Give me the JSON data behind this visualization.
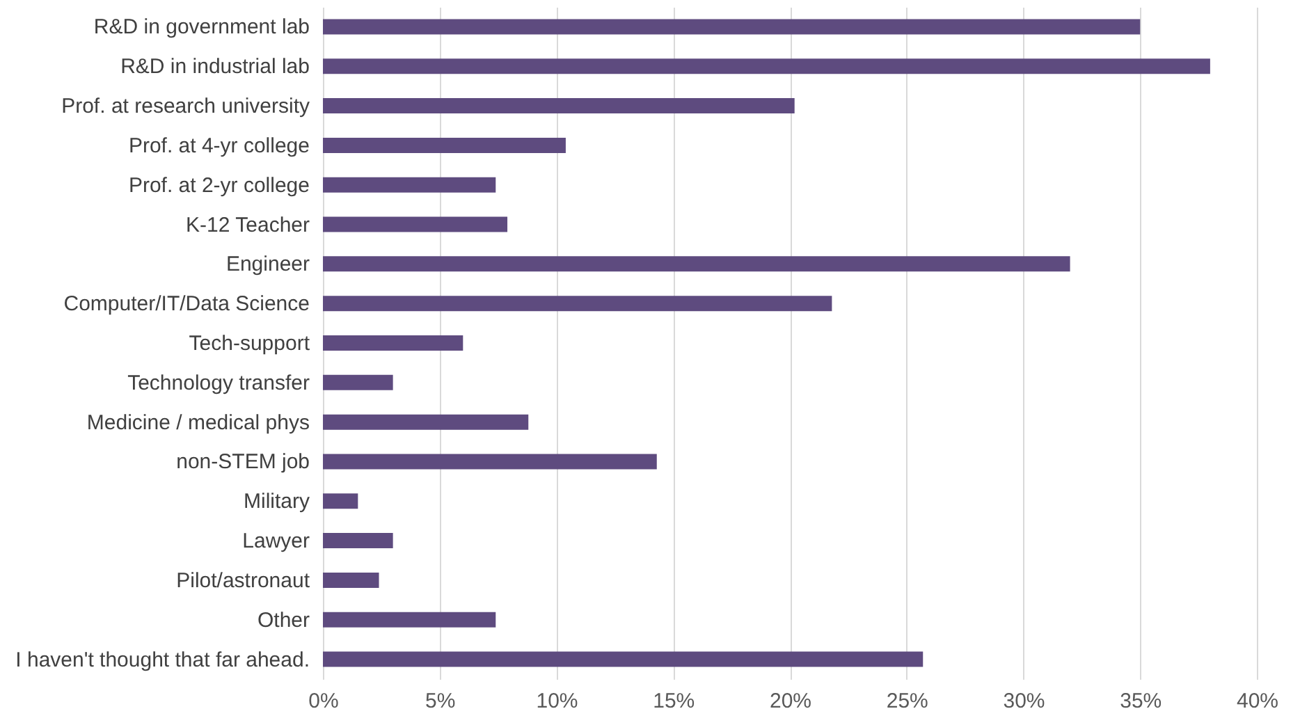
{
  "chart_data": {
    "type": "bar",
    "orientation": "horizontal",
    "categories": [
      "R&D in government lab",
      "R&D in industrial lab",
      "Prof. at research university",
      "Prof. at 4-yr college",
      "Prof. at 2-yr college",
      "K-12 Teacher",
      "Engineer",
      "Computer/IT/Data Science",
      "Tech-support",
      "Technology transfer",
      "Medicine / medical phys",
      "non-STEM job",
      "Military",
      "Lawyer",
      "Pilot/astronaut",
      "Other",
      "I haven't thought that far ahead."
    ],
    "values": [
      35,
      38,
      20.2,
      10.4,
      7.4,
      7.9,
      32,
      21.8,
      6,
      3,
      8.8,
      14.3,
      1.5,
      3,
      2.4,
      7.4,
      25.7
    ],
    "color": "#5e4b7f",
    "xlim": [
      0,
      40
    ],
    "xticks": [
      {
        "value": 0,
        "label": "0%"
      },
      {
        "value": 5,
        "label": "5%"
      },
      {
        "value": 10,
        "label": "10%"
      },
      {
        "value": 15,
        "label": "15%"
      },
      {
        "value": 20,
        "label": "20%"
      },
      {
        "value": 25,
        "label": "25%"
      },
      {
        "value": 30,
        "label": "30%"
      },
      {
        "value": 35,
        "label": "35%"
      },
      {
        "value": 40,
        "label": "40%"
      }
    ],
    "grid": "x"
  }
}
